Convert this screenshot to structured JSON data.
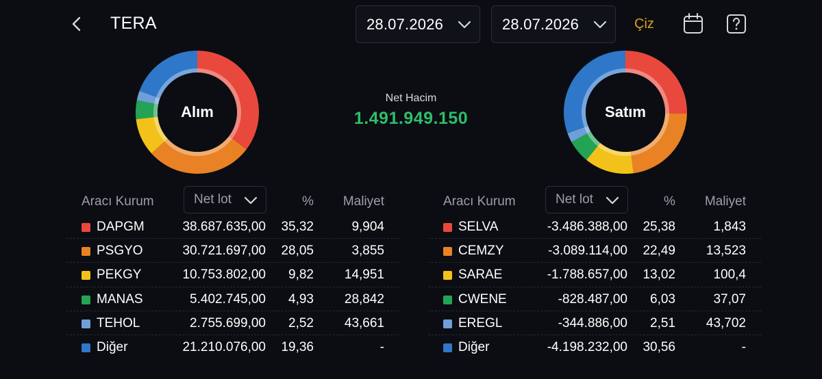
{
  "header": {
    "title": "TERA",
    "date_from": "28.07.2026",
    "date_to": "28.07.2026",
    "draw_label": "Çiz",
    "draw_color": "#d9a21b"
  },
  "summary": {
    "net_label": "Net Hacim",
    "net_value": "1.491.949.150",
    "net_color": "#2ebd6b"
  },
  "colors": {
    "red": "#e8493c",
    "orange": "#e98224",
    "yellow": "#f2c21a",
    "green": "#23a455",
    "lightblue": "#6f9fd8",
    "blue": "#2f77c9"
  },
  "buy": {
    "label": "Alım",
    "columns": {
      "broker": "Aracı Kurum",
      "lot": "Net lot",
      "pct": "%",
      "cost": "Maliyet"
    },
    "rows": [
      {
        "name": "DAPGM",
        "lot": "38.687.635,00",
        "pct": "35,32",
        "cost": "9,904",
        "color": "#e8493c",
        "share": 35.32
      },
      {
        "name": "PSGYO",
        "lot": "30.721.697,00",
        "pct": "28,05",
        "cost": "3,855",
        "color": "#e98224",
        "share": 28.05
      },
      {
        "name": "PEKGY",
        "lot": "10.753.802,00",
        "pct": "9,82",
        "cost": "14,951",
        "color": "#f2c21a",
        "share": 9.82
      },
      {
        "name": "MANAS",
        "lot": "5.402.745,00",
        "pct": "4,93",
        "cost": "28,842",
        "color": "#23a455",
        "share": 4.93
      },
      {
        "name": "TEHOL",
        "lot": "2.755.699,00",
        "pct": "2,52",
        "cost": "43,661",
        "color": "#6f9fd8",
        "share": 2.52
      },
      {
        "name": "Diğer",
        "lot": "21.210.076,00",
        "pct": "19,36",
        "cost": "-",
        "color": "#2f77c9",
        "share": 19.36
      }
    ]
  },
  "sell": {
    "label": "Satım",
    "columns": {
      "broker": "Aracı Kurum",
      "lot": "Net lot",
      "pct": "%",
      "cost": "Maliyet"
    },
    "rows": [
      {
        "name": "SELVA",
        "lot": "-3.486.388,00",
        "pct": "25,38",
        "cost": "1,843",
        "color": "#e8493c",
        "share": 25.38
      },
      {
        "name": "CEMZY",
        "lot": "-3.089.114,00",
        "pct": "22,49",
        "cost": "13,523",
        "color": "#e98224",
        "share": 22.49
      },
      {
        "name": "SARAE",
        "lot": "-1.788.657,00",
        "pct": "13,02",
        "cost": "100,4",
        "color": "#f2c21a",
        "share": 13.02
      },
      {
        "name": "CWENE",
        "lot": "-828.487,00",
        "pct": "6,03",
        "cost": "37,07",
        "color": "#23a455",
        "share": 6.03
      },
      {
        "name": "EREGL",
        "lot": "-344.886,00",
        "pct": "2,51",
        "cost": "43,702",
        "color": "#6f9fd8",
        "share": 2.51
      },
      {
        "name": "Diğer",
        "lot": "-4.198.232,00",
        "pct": "30,56",
        "cost": "-",
        "color": "#2f77c9",
        "share": 30.56
      }
    ]
  }
}
